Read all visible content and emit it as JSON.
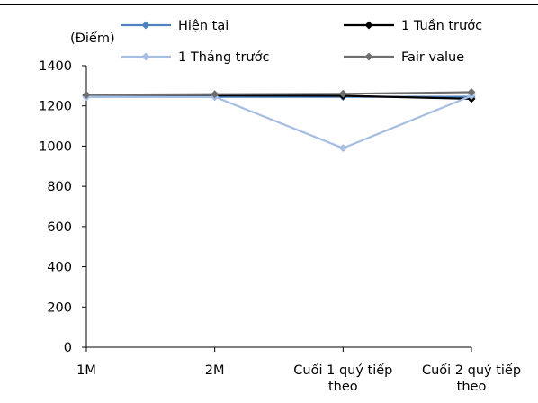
{
  "chart_data": {
    "type": "line",
    "unit_label": "(Điểm)",
    "categories": [
      "1M",
      "2M",
      "Cuối 1 quý tiếp theo",
      "Cuối 2 quý tiếp theo"
    ],
    "ylim": [
      0,
      1400
    ],
    "yticks": [
      0,
      200,
      400,
      600,
      800,
      1000,
      1200,
      1400
    ],
    "grid": false,
    "legend_position": "top",
    "series": [
      {
        "name": "Hiện tại",
        "color": "#4F81BD",
        "values": [
          1245,
          1245,
          1245,
          1245
        ]
      },
      {
        "name": "1 Tuần trước",
        "color": "#000000",
        "values": [
          1252,
          1252,
          1250,
          1235
        ]
      },
      {
        "name": "1 Tháng trước",
        "color": "#A6BEE2",
        "values": [
          1245,
          1245,
          990,
          1250
        ]
      },
      {
        "name": "Fair value",
        "color": "#6E6E6E",
        "values": [
          1255,
          1258,
          1260,
          1268
        ]
      }
    ]
  }
}
